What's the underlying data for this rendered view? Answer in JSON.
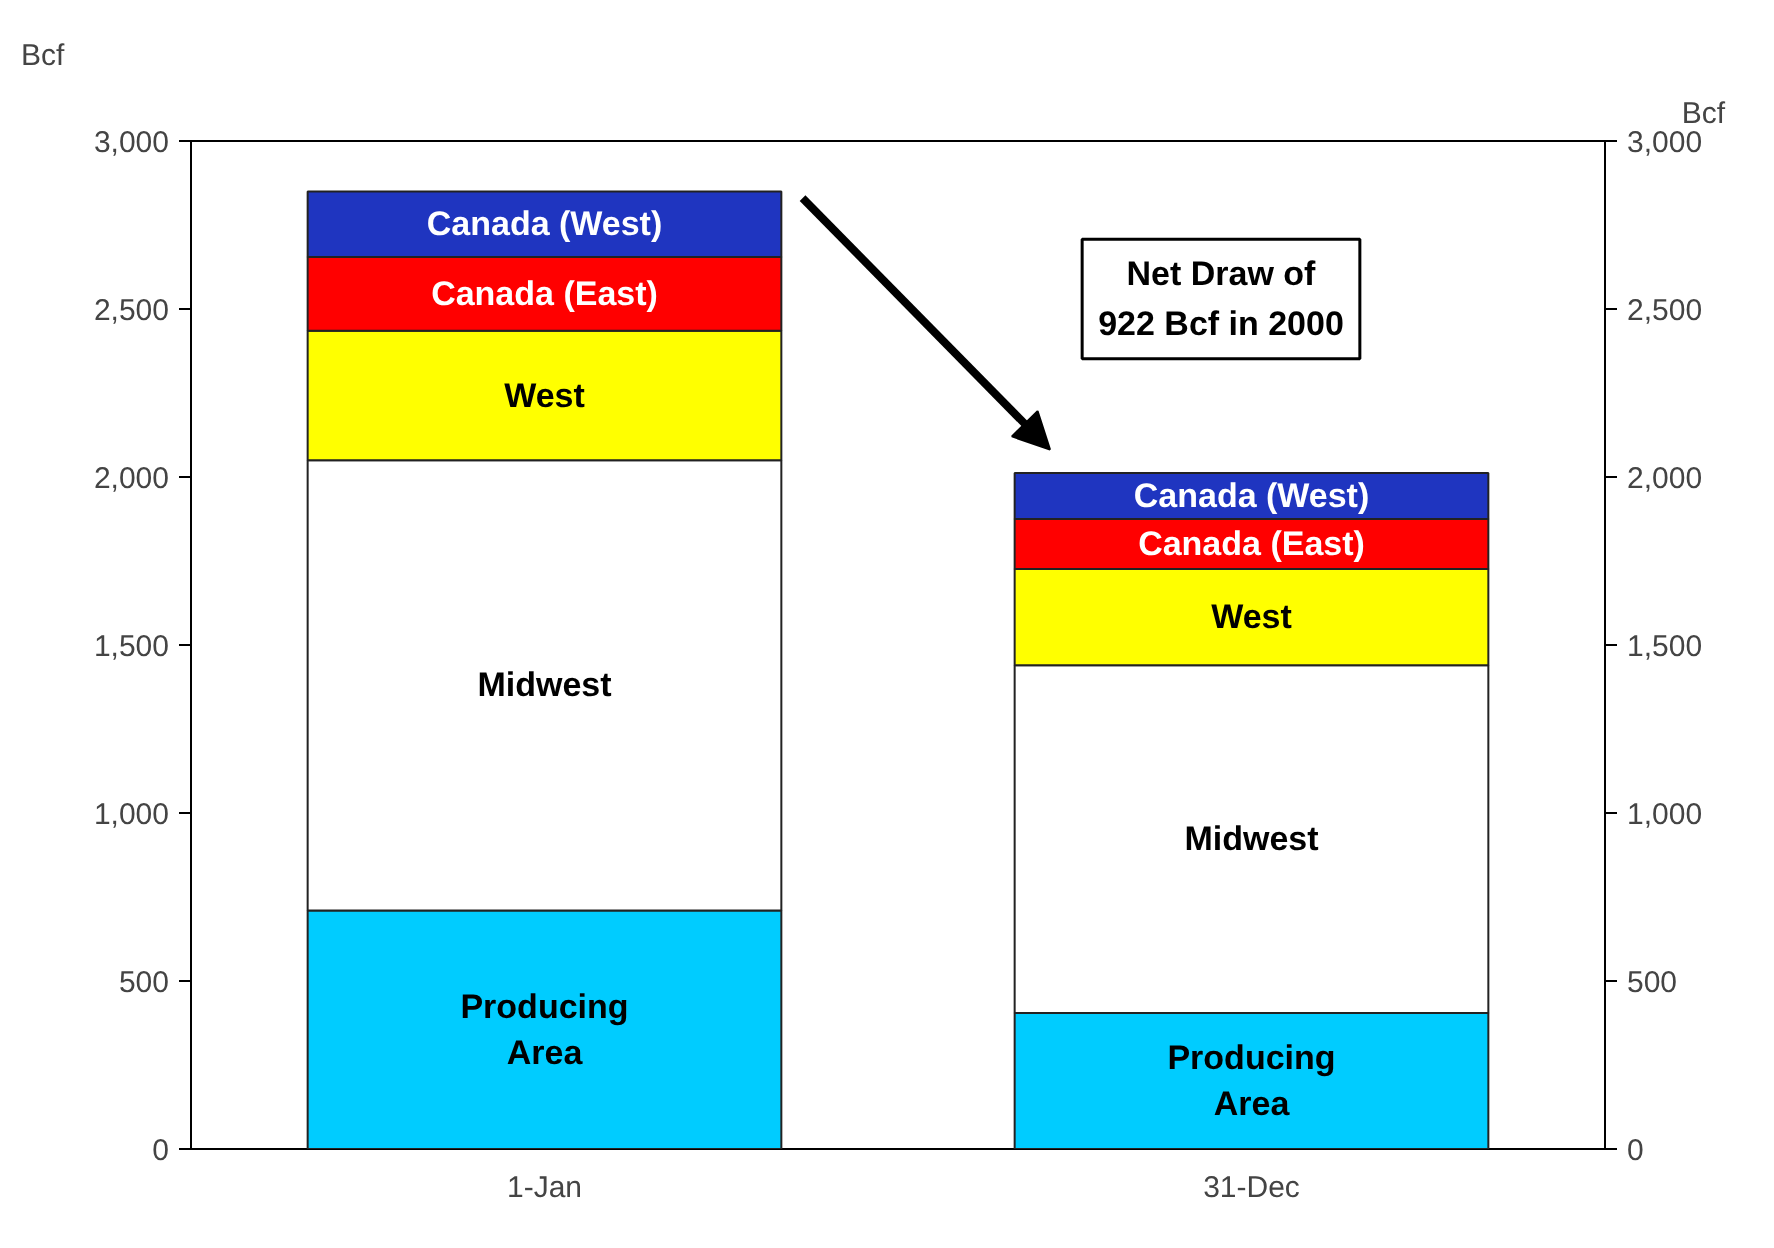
{
  "chart_data": {
    "type": "bar",
    "stacked": true,
    "categories": [
      "1-Jan",
      "31-Dec"
    ],
    "series": [
      {
        "name": "Producing Area",
        "color": "#00ccff",
        "values": [
          710,
          405
        ]
      },
      {
        "name": "Midwest",
        "color": "#ffffff",
        "values": [
          1340,
          1035
        ]
      },
      {
        "name": "West",
        "color": "#ffff00",
        "values": [
          385,
          286
        ]
      },
      {
        "name": "Canada (East)",
        "color": "#ff0000",
        "values": [
          220,
          149
        ]
      },
      {
        "name": "Canada (West)",
        "color": "#1f35c0",
        "values": [
          195,
          137
        ]
      }
    ],
    "ylabel": "Bcf",
    "y2label": "Bcf",
    "ylim": [
      0,
      3000
    ],
    "yticks": [
      0,
      {
        "value": 500,
        "label": "500"
      },
      {
        "value": 1000,
        "label": "1,000"
      },
      {
        "value": 1500,
        "label": "1,500"
      },
      {
        "value": 2000,
        "label": "2,000"
      },
      {
        "value": 2500,
        "label": "2,500"
      },
      {
        "value": 3000,
        "label": "3,000"
      }
    ],
    "y2lim": [
      0,
      3000
    ],
    "y2ticks": [
      0,
      {
        "value": 500,
        "label": "500"
      },
      {
        "value": 1000,
        "label": "1,000"
      },
      {
        "value": 1500,
        "label": "1,500"
      },
      {
        "value": 2000,
        "label": "2,000"
      },
      {
        "value": 2500,
        "label": "2,500"
      },
      {
        "value": 3000,
        "label": "3,000"
      }
    ],
    "annotations": [
      "Net Draw of\n922 Bcf in 2000"
    ],
    "grid": false
  }
}
